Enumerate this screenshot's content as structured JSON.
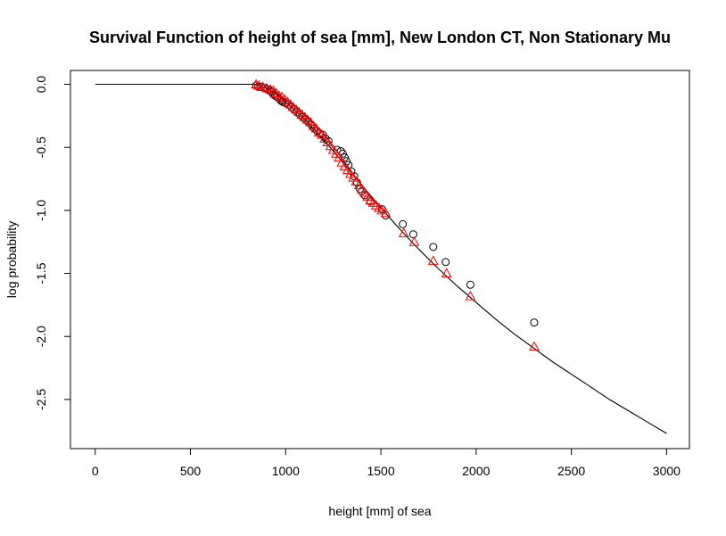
{
  "chart_data": {
    "type": "scatter",
    "title": "Survival Function of height of sea [mm], New London CT, Non Stationary Mu",
    "xlabel": "height [mm] of sea",
    "ylabel": "log probability",
    "xlim": [
      -130,
      3120
    ],
    "ylim": [
      -2.89,
      0.11
    ],
    "x_ticks": [
      0,
      500,
      1000,
      1500,
      2000,
      2500,
      3000
    ],
    "x_tick_labels": [
      "0",
      "500",
      "1000",
      "1500",
      "2000",
      "2500",
      "3000"
    ],
    "y_ticks": [
      0.0,
      -0.5,
      -1.0,
      -1.5,
      -2.0,
      -2.5
    ],
    "y_tick_labels": [
      "0.0",
      "-0.5",
      "-1.0",
      "-1.5",
      "-2.0",
      "-2.5"
    ],
    "grid": false,
    "colors": {
      "curve": "#000000",
      "empirical": "#000000",
      "model": "#ff0000",
      "frame": "#000000"
    },
    "series": [
      {
        "kind": "line",
        "color": "#000000",
        "x": [
          0,
          840,
          900,
          960,
          1000,
          1050,
          1100,
          1150,
          1200,
          1250,
          1300,
          1350,
          1400,
          1450,
          1500,
          1600,
          1700,
          1800,
          1900,
          2000,
          2100,
          2200,
          2300,
          2400,
          2500,
          2600,
          2700,
          2800,
          2900,
          3000
        ],
        "y": [
          0,
          0,
          -0.03,
          -0.09,
          -0.14,
          -0.21,
          -0.28,
          -0.36,
          -0.44,
          -0.53,
          -0.62,
          -0.71,
          -0.8,
          -0.89,
          -0.98,
          -1.15,
          -1.31,
          -1.46,
          -1.6,
          -1.73,
          -1.86,
          -1.98,
          -2.09,
          -2.2,
          -2.3,
          -2.4,
          -2.5,
          -2.59,
          -2.68,
          -2.77
        ]
      },
      {
        "kind": "points",
        "marker": "circle",
        "color": "#000000",
        "x": [
          845,
          855,
          870,
          890,
          905,
          915,
          925,
          935,
          945,
          955,
          965,
          975,
          985,
          1000,
          1015,
          1030,
          1045,
          1060,
          1075,
          1090,
          1105,
          1120,
          1135,
          1150,
          1165,
          1180,
          1195,
          1210,
          1225,
          1270,
          1290,
          1300,
          1310,
          1320,
          1330,
          1345,
          1360,
          1375,
          1390,
          1400,
          1415,
          1445,
          1505,
          1525,
          1615,
          1670,
          1775,
          1840,
          1970,
          2305
        ],
        "y": [
          -0.01,
          -0.02,
          -0.02,
          -0.03,
          -0.04,
          -0.05,
          -0.06,
          -0.08,
          -0.09,
          -0.1,
          -0.11,
          -0.13,
          -0.14,
          -0.15,
          -0.16,
          -0.18,
          -0.2,
          -0.22,
          -0.24,
          -0.26,
          -0.28,
          -0.3,
          -0.32,
          -0.35,
          -0.37,
          -0.39,
          -0.4,
          -0.43,
          -0.45,
          -0.52,
          -0.53,
          -0.55,
          -0.58,
          -0.61,
          -0.64,
          -0.69,
          -0.73,
          -0.78,
          -0.83,
          -0.85,
          -0.88,
          -0.93,
          -0.99,
          -1.04,
          -1.11,
          -1.19,
          -1.29,
          -1.41,
          -1.59,
          -1.89
        ]
      },
      {
        "kind": "points",
        "marker": "triangle",
        "color": "#ff0000",
        "x": [
          845,
          860,
          880,
          900,
          920,
          935,
          950,
          965,
          980,
          995,
          1010,
          1025,
          1040,
          1055,
          1070,
          1085,
          1100,
          1115,
          1130,
          1145,
          1160,
          1175,
          1190,
          1205,
          1220,
          1235,
          1250,
          1265,
          1280,
          1295,
          1310,
          1325,
          1340,
          1355,
          1370,
          1385,
          1400,
          1415,
          1430,
          1445,
          1460,
          1475,
          1490,
          1505,
          1525,
          1620,
          1675,
          1775,
          1845,
          1970,
          2305
        ],
        "y": [
          0.0,
          -0.01,
          -0.02,
          -0.03,
          -0.04,
          -0.05,
          -0.07,
          -0.09,
          -0.1,
          -0.12,
          -0.14,
          -0.16,
          -0.18,
          -0.2,
          -0.22,
          -0.24,
          -0.26,
          -0.28,
          -0.3,
          -0.33,
          -0.35,
          -0.38,
          -0.4,
          -0.43,
          -0.46,
          -0.49,
          -0.52,
          -0.55,
          -0.58,
          -0.62,
          -0.65,
          -0.68,
          -0.71,
          -0.74,
          -0.77,
          -0.8,
          -0.83,
          -0.86,
          -0.89,
          -0.92,
          -0.94,
          -0.96,
          -0.98,
          -1.0,
          -1.02,
          -1.18,
          -1.25,
          -1.4,
          -1.5,
          -1.68,
          -2.08
        ]
      }
    ]
  }
}
